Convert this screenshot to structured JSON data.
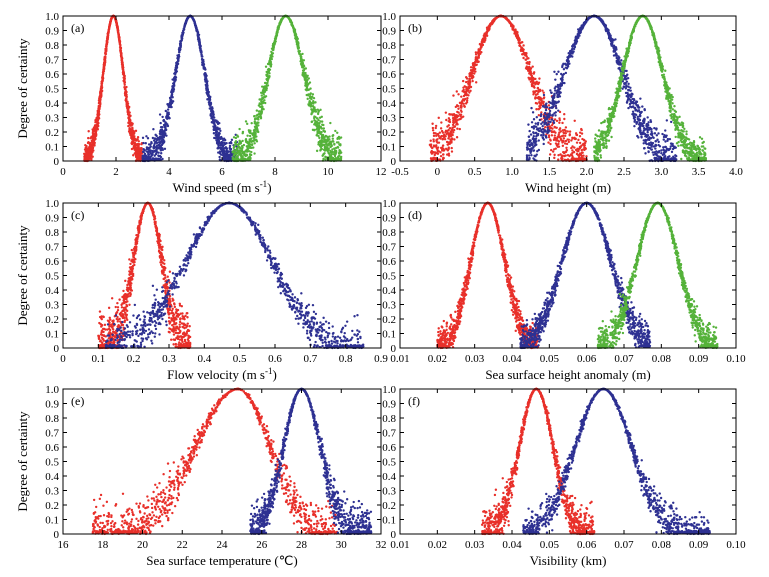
{
  "colors": {
    "red": "#e8302a",
    "blue": "#2e3192",
    "green": "#55b23a"
  },
  "chart_data": [
    {
      "type": "scatter",
      "panel_label": "(a)",
      "xlabel": "Wind speed (m s",
      "xlabel_sup": "-1",
      "xlabel_tail": ")",
      "ylabel": "Degree of certainty",
      "xlim": [
        0,
        12
      ],
      "ylim": [
        0,
        1
      ],
      "xticks": [
        0,
        2,
        4,
        6,
        8,
        10,
        12
      ],
      "xtick_labels": [
        "0",
        "2",
        "4",
        "6",
        "8",
        "10",
        "12"
      ],
      "ytick_labels": [
        "0",
        "0.1",
        "0.2",
        "0.3",
        "0.4",
        "0.5",
        "0.6",
        "0.7",
        "0.8",
        "0.9",
        "1.0"
      ],
      "series": [
        {
          "name": "red",
          "color": "#e8302a",
          "center": 1.9,
          "spread_left": 0.38,
          "spread_right": 0.38,
          "xmin": 0.8,
          "xmax": 3.0,
          "noise": 0.03
        },
        {
          "name": "blue",
          "color": "#2e3192",
          "center": 4.8,
          "spread_left": 0.55,
          "spread_right": 0.55,
          "xmin": 3.0,
          "xmax": 6.6,
          "noise": 0.04
        },
        {
          "name": "green",
          "color": "#55b23a",
          "center": 8.4,
          "spread_left": 0.65,
          "spread_right": 0.7,
          "xmin": 6.4,
          "xmax": 10.5,
          "noise": 0.05
        }
      ]
    },
    {
      "type": "scatter",
      "panel_label": "(b)",
      "xlabel": "Wind height (m)",
      "xlabel_sup": "",
      "xlabel_tail": "",
      "ylabel": "",
      "xlim": [
        -0.5,
        4.0
      ],
      "ylim": [
        0,
        1
      ],
      "xticks": [
        -0.5,
        0,
        0.5,
        1.0,
        1.5,
        2.0,
        2.5,
        3.0,
        3.5,
        4.0
      ],
      "xtick_labels": [
        "-0.5",
        "0",
        "0.5",
        "1.0",
        "1.5",
        "2.0",
        "2.5",
        "3.0",
        "3.5",
        "4.0"
      ],
      "ytick_labels": [
        "0",
        "0.1",
        "0.2",
        "0.3",
        "0.4",
        "0.5",
        "0.6",
        "0.7",
        "0.8",
        "0.9",
        "1.0"
      ],
      "series": [
        {
          "name": "red",
          "color": "#e8302a",
          "center": 0.85,
          "spread_left": 0.38,
          "spread_right": 0.4,
          "xmin": -0.1,
          "xmax": 2.0,
          "noise": 0.06
        },
        {
          "name": "blue",
          "color": "#2e3192",
          "center": 2.1,
          "spread_left": 0.4,
          "spread_right": 0.38,
          "xmin": 1.2,
          "xmax": 3.2,
          "noise": 0.06
        },
        {
          "name": "green",
          "color": "#55b23a",
          "center": 2.75,
          "spread_left": 0.27,
          "spread_right": 0.27,
          "xmin": 2.1,
          "xmax": 3.6,
          "noise": 0.04
        }
      ]
    },
    {
      "type": "scatter",
      "panel_label": "(c)",
      "xlabel": "Flow velocity (m s",
      "xlabel_sup": "-1",
      "xlabel_tail": ")",
      "ylabel": "Degree of certainty",
      "xlim": [
        0,
        0.9
      ],
      "ylim": [
        0,
        1
      ],
      "xticks": [
        0,
        0.1,
        0.2,
        0.3,
        0.4,
        0.5,
        0.6,
        0.7,
        0.8,
        0.9
      ],
      "xtick_labels": [
        "0",
        "0.1",
        "0.2",
        "0.3",
        "0.4",
        "0.5",
        "0.6",
        "0.7",
        "0.8",
        "0.9"
      ],
      "ytick_labels": [
        "0",
        "0.1",
        "0.2",
        "0.3",
        "0.4",
        "0.5",
        "0.6",
        "0.7",
        "0.8",
        "0.9",
        "1.0"
      ],
      "series": [
        {
          "name": "red",
          "color": "#e8302a",
          "center": 0.24,
          "spread_left": 0.04,
          "spread_right": 0.04,
          "xmin": 0.1,
          "xmax": 0.36,
          "noise": 0.07
        },
        {
          "name": "blue",
          "color": "#2e3192",
          "center": 0.47,
          "spread_left": 0.12,
          "spread_right": 0.12,
          "xmin": 0.12,
          "xmax": 0.85,
          "noise": 0.05
        }
      ]
    },
    {
      "type": "scatter",
      "panel_label": "(d)",
      "xlabel": "Sea surface height anomaly (m)",
      "xlabel_sup": "",
      "xlabel_tail": "",
      "ylabel": "",
      "xlim": [
        0.01,
        0.1
      ],
      "ylim": [
        0,
        1
      ],
      "xticks": [
        0.01,
        0.02,
        0.03,
        0.04,
        0.05,
        0.06,
        0.07,
        0.08,
        0.09,
        0.1
      ],
      "xtick_labels": [
        "0.01",
        "0.02",
        "0.03",
        "0.04",
        "0.05",
        "0.06",
        "0.07",
        "0.08",
        "0.09",
        "0.10"
      ],
      "ytick_labels": [
        "0",
        "0.1",
        "0.2",
        "0.3",
        "0.4",
        "0.5",
        "0.6",
        "0.7",
        "0.8",
        "0.9",
        "1.0"
      ],
      "series": [
        {
          "name": "red",
          "color": "#e8302a",
          "center": 0.0335,
          "spread_left": 0.0045,
          "spread_right": 0.0045,
          "xmin": 0.02,
          "xmax": 0.047,
          "noise": 0.04
        },
        {
          "name": "blue",
          "color": "#2e3192",
          "center": 0.06,
          "spread_left": 0.0065,
          "spread_right": 0.0065,
          "xmin": 0.042,
          "xmax": 0.077,
          "noise": 0.04
        },
        {
          "name": "green",
          "color": "#55b23a",
          "center": 0.079,
          "spread_left": 0.0055,
          "spread_right": 0.0055,
          "xmin": 0.063,
          "xmax": 0.095,
          "noise": 0.04
        }
      ]
    },
    {
      "type": "scatter",
      "panel_label": "(e)",
      "xlabel": "Sea surface temperature (℃)",
      "xlabel_sup": "",
      "xlabel_tail": "",
      "ylabel": "Degree of certainty",
      "xlim": [
        16,
        32
      ],
      "ylim": [
        0,
        1
      ],
      "xticks": [
        16,
        18,
        20,
        22,
        24,
        26,
        28,
        30,
        32
      ],
      "xtick_labels": [
        "16",
        "18",
        "20",
        "22",
        "24",
        "26",
        "28",
        "30",
        "32"
      ],
      "ytick_labels": [
        "0",
        "0.1",
        "0.2",
        "0.3",
        "0.4",
        "0.5",
        "0.6",
        "0.7",
        "0.8",
        "0.9",
        "1.0"
      ],
      "series": [
        {
          "name": "red",
          "color": "#e8302a",
          "center": 24.8,
          "spread_left": 2.1,
          "spread_right": 1.6,
          "xmin": 17.5,
          "xmax": 29.8,
          "noise": 0.06
        },
        {
          "name": "blue",
          "color": "#2e3192",
          "center": 28.0,
          "spread_left": 0.9,
          "spread_right": 0.95,
          "xmin": 25.4,
          "xmax": 31.5,
          "noise": 0.05
        }
      ]
    },
    {
      "type": "scatter",
      "panel_label": "(f)",
      "xlabel": "Visibility (km)",
      "xlabel_sup": "",
      "xlabel_tail": "",
      "ylabel": "",
      "xlim": [
        0.01,
        0.1
      ],
      "ylim": [
        0,
        1
      ],
      "xticks": [
        0.01,
        0.02,
        0.03,
        0.04,
        0.05,
        0.06,
        0.07,
        0.08,
        0.09,
        0.1
      ],
      "xtick_labels": [
        "0.01",
        "0.02",
        "0.03",
        "0.04",
        "0.05",
        "0.06",
        "0.07",
        "0.08",
        "0.09",
        "0.10"
      ],
      "ytick_labels": [
        "0",
        "0.1",
        "0.2",
        "0.3",
        "0.4",
        "0.5",
        "0.6",
        "0.7",
        "0.8",
        "0.9",
        "1.0"
      ],
      "series": [
        {
          "name": "red",
          "color": "#e8302a",
          "center": 0.0465,
          "spread_left": 0.0045,
          "spread_right": 0.0045,
          "xmin": 0.032,
          "xmax": 0.062,
          "noise": 0.05
        },
        {
          "name": "blue",
          "color": "#2e3192",
          "center": 0.0645,
          "spread_left": 0.0075,
          "spread_right": 0.0075,
          "xmin": 0.043,
          "xmax": 0.093,
          "noise": 0.04
        }
      ]
    }
  ]
}
